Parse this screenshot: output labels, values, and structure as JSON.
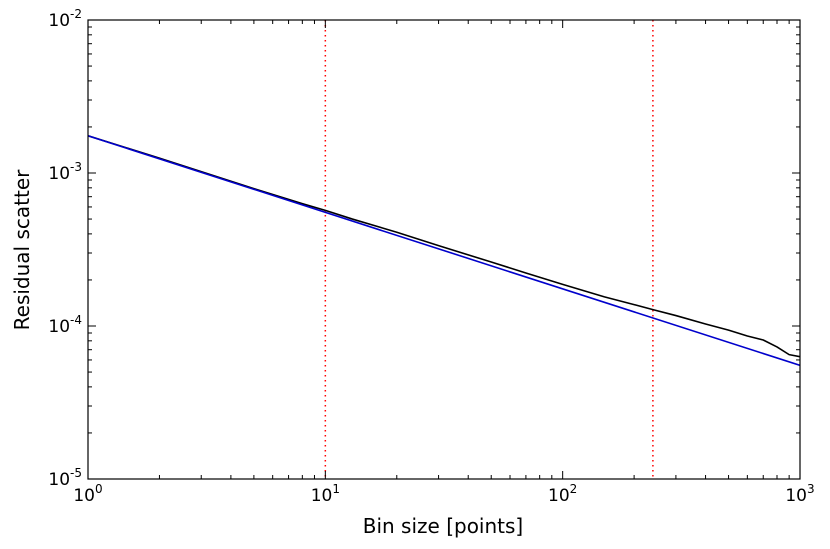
{
  "chart_data": {
    "type": "line",
    "title": "",
    "xlabel": "Bin size [points]",
    "ylabel": "Residual scatter",
    "xscale": "log",
    "yscale": "log",
    "xlim": [
      1,
      1000
    ],
    "ylim": [
      1e-05,
      0.01
    ],
    "grid": false,
    "x_ticks": [
      {
        "base": "10",
        "exp": "0",
        "value": 1
      },
      {
        "base": "10",
        "exp": "1",
        "value": 10
      },
      {
        "base": "10",
        "exp": "2",
        "value": 100
      },
      {
        "base": "10",
        "exp": "3",
        "value": 1000
      }
    ],
    "y_ticks": [
      {
        "base": "10",
        "exp": "-5",
        "value": 1e-05
      },
      {
        "base": "10",
        "exp": "-4",
        "value": 0.0001
      },
      {
        "base": "10",
        "exp": "-3",
        "value": 0.001
      },
      {
        "base": "10",
        "exp": "-2",
        "value": 0.01
      }
    ],
    "series": [
      {
        "color": "#000000",
        "x": [
          1,
          2,
          3,
          5,
          8,
          10,
          13,
          20,
          30,
          50,
          70,
          100,
          150,
          200,
          240,
          300,
          400,
          500,
          600,
          700,
          800,
          900,
          1000
        ],
        "y": [
          0.00175,
          0.00125,
          0.00102,
          0.00079,
          0.00063,
          0.00057,
          0.0005,
          0.00041,
          0.000335,
          0.000262,
          0.000222,
          0.000187,
          0.000155,
          0.000138,
          0.000128,
          0.000117,
          0.000103,
          9.4e-05,
          8.6e-05,
          8.1e-05,
          7.3e-05,
          6.5e-05,
          6.3e-05
        ]
      },
      {
        "color": "#0000cc",
        "x": [
          1,
          1000
        ],
        "y": [
          0.00175,
          5.53e-05
        ]
      }
    ],
    "vlines": [
      {
        "x": 10,
        "color": "#ff0000",
        "style": "dotted"
      },
      {
        "x": 240,
        "color": "#ff0000",
        "style": "dotted"
      }
    ]
  }
}
